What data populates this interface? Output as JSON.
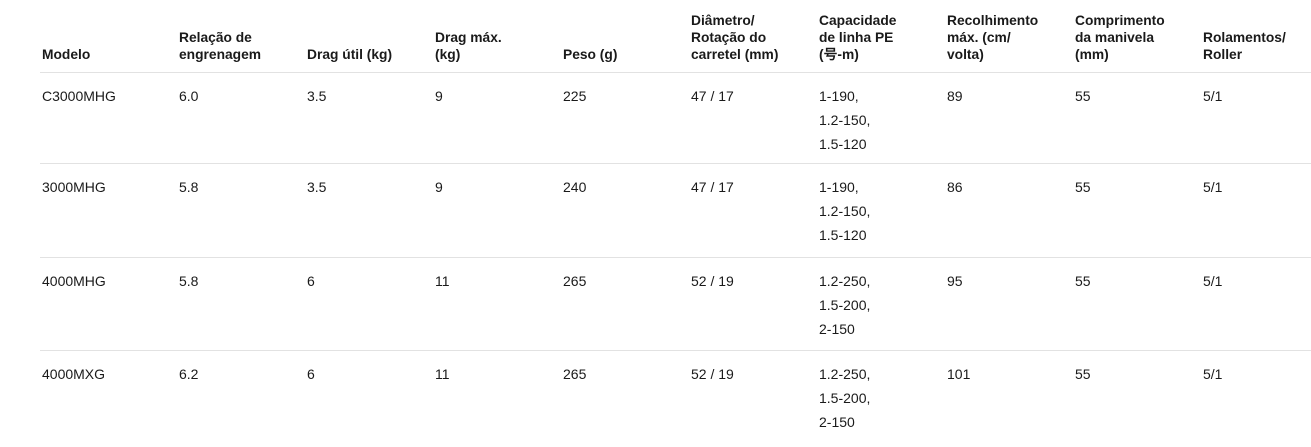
{
  "colors": {
    "background": "#ffffff",
    "text": "#1a1a1a",
    "row_border": "#e2e2e2"
  },
  "table": {
    "columns": [
      {
        "key": "modelo",
        "label": "Modelo"
      },
      {
        "key": "gear_ratio",
        "label": "Relação de\nengrenagem"
      },
      {
        "key": "drag_util",
        "label": "Drag útil (kg)"
      },
      {
        "key": "drag_max",
        "label": "Drag máx.\n(kg)"
      },
      {
        "key": "peso",
        "label": "Peso (g)"
      },
      {
        "key": "diametro",
        "label": "Diâmetro/\nRotação do\ncarretel (mm)"
      },
      {
        "key": "capacidade_pe",
        "label": "Capacidade\nde linha PE\n(号-m)"
      },
      {
        "key": "recolhimento",
        "label": "Recolhimento\nmáx. (cm/\nvolta)"
      },
      {
        "key": "manivela",
        "label": "Comprimento\nda manivela\n(mm)"
      },
      {
        "key": "rolamentos",
        "label": "Rolamentos/\nRoller"
      }
    ],
    "rows": [
      {
        "modelo": "C3000MHG",
        "gear_ratio": "6.0",
        "drag_util": "3.5",
        "drag_max": "9",
        "peso": "225",
        "diametro": "47 / 17",
        "capacidade_pe": "1-190,\n1.2-150,\n1.5-120",
        "recolhimento": "89",
        "manivela": "55",
        "rolamentos": "5/1"
      },
      {
        "modelo": "3000MHG",
        "gear_ratio": "5.8",
        "drag_util": "3.5",
        "drag_max": "9",
        "peso": "240",
        "diametro": "47 / 17",
        "capacidade_pe": "1-190,\n1.2-150,\n1.5-120",
        "recolhimento": "86",
        "manivela": "55",
        "rolamentos": "5/1"
      },
      {
        "modelo": "4000MHG",
        "gear_ratio": "5.8",
        "drag_util": "6",
        "drag_max": "11",
        "peso": "265",
        "diametro": "52 / 19",
        "capacidade_pe": "1.2-250,\n1.5-200,\n2-150",
        "recolhimento": "95",
        "manivela": "55",
        "rolamentos": "5/1"
      },
      {
        "modelo": "4000MXG",
        "gear_ratio": "6.2",
        "drag_util": "6",
        "drag_max": "11",
        "peso": "265",
        "diametro": "52 / 19",
        "capacidade_pe": "1.2-250,\n1.5-200,\n2-150",
        "recolhimento": "101",
        "manivela": "55",
        "rolamentos": "5/1"
      }
    ]
  }
}
